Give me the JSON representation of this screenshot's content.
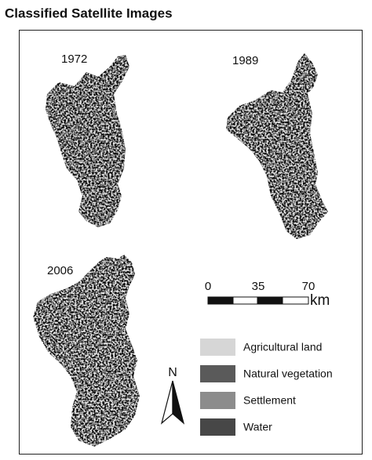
{
  "title": "Classified Satellite Images",
  "maps": [
    {
      "label": "1972"
    },
    {
      "label": "1989"
    },
    {
      "label": "2006"
    }
  ],
  "scale_bar": {
    "ticks": [
      0,
      35,
      70
    ],
    "unit": "km"
  },
  "north_arrow": {
    "label": "N"
  },
  "legend": [
    {
      "label": "Agricultural land",
      "color": "#d6d6d6"
    },
    {
      "label": "Natural vegetation",
      "color": "#5a5a5a"
    },
    {
      "label": "Settlement",
      "color": "#8c8c8c"
    },
    {
      "label": "Water",
      "color": "#474747"
    }
  ]
}
